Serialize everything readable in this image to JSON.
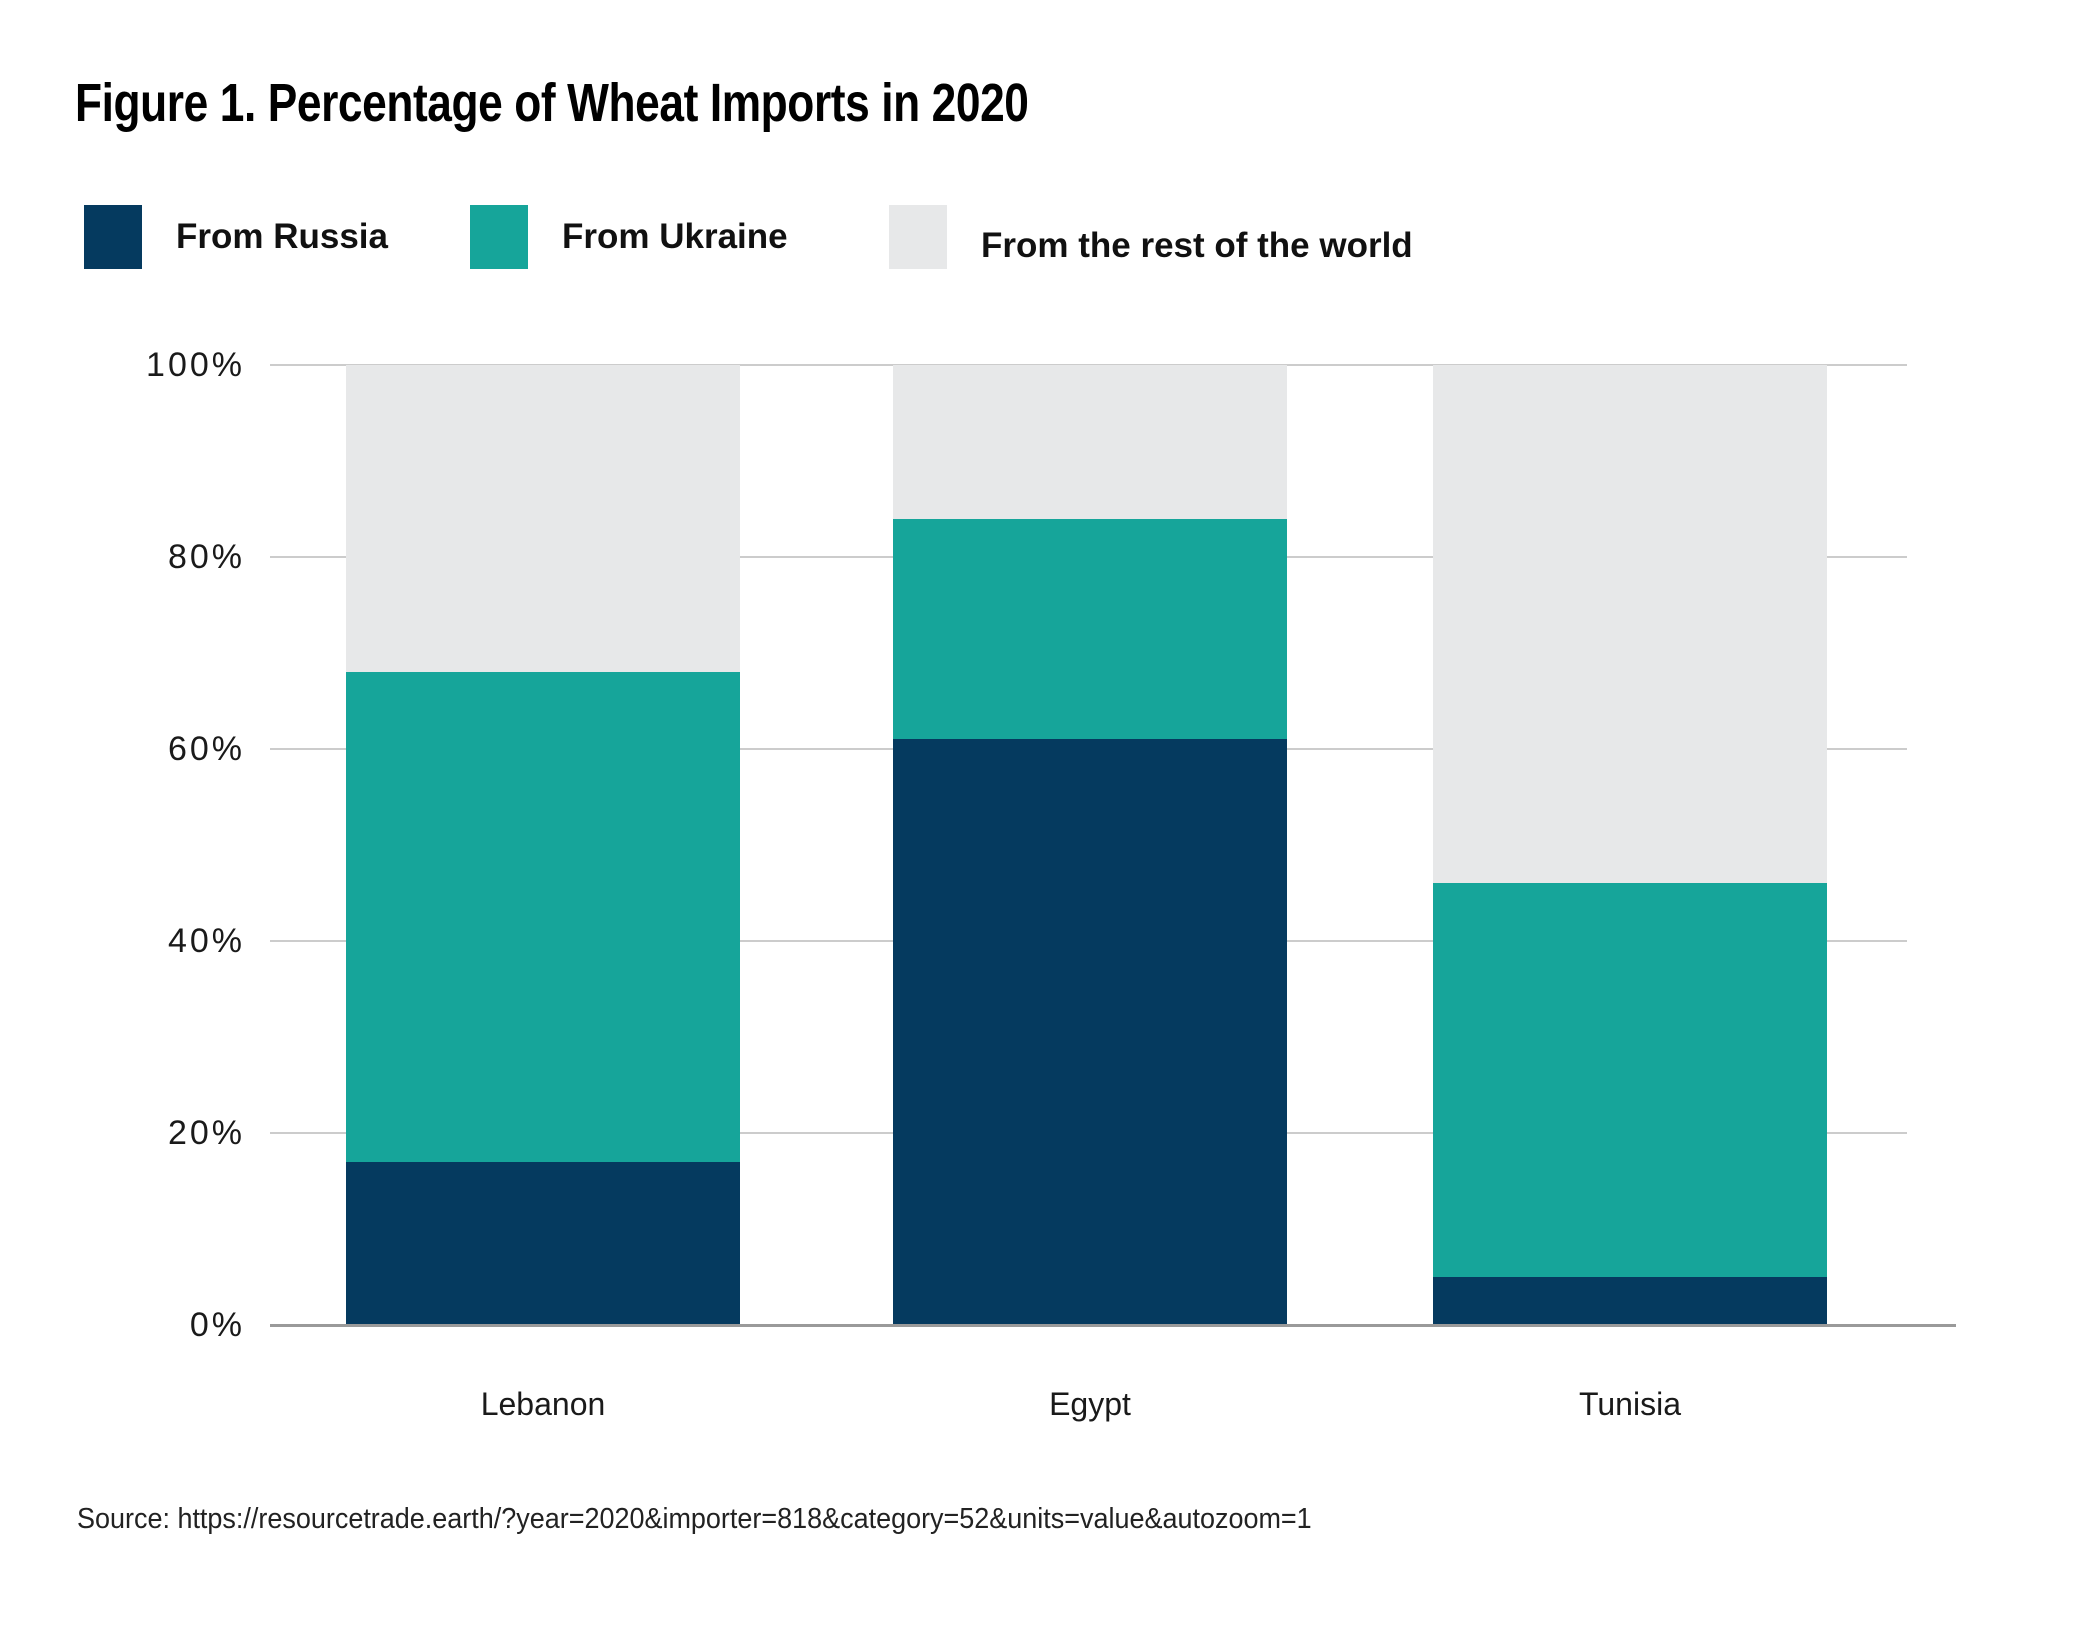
{
  "figure": {
    "title": "Figure 1. Percentage of Wheat Imports in 2020",
    "source_line": "Source: https://resourcetrade.earth/?year=2020&importer=818&category=52&units=value&autozoom=1"
  },
  "legend": {
    "position": "top",
    "items": [
      {
        "label": "From Russia",
        "color": "#053a5f"
      },
      {
        "label": "From Ukraine",
        "color": "#16a59a"
      },
      {
        "label": "From the rest of the world",
        "color": "#e7e8e9"
      }
    ]
  },
  "chart_data": {
    "type": "bar",
    "stacked": true,
    "unit": "percent",
    "title": "Figure 1. Percentage of Wheat Imports in 2020",
    "categories": [
      "Lebanon",
      "Egypt",
      "Tunisia"
    ],
    "series": [
      {
        "name": "From Russia",
        "color": "#053a5f",
        "values": [
          17,
          61,
          5
        ]
      },
      {
        "name": "From Ukraine",
        "color": "#16a59a",
        "values": [
          51,
          23,
          41
        ]
      },
      {
        "name": "From the rest of the world",
        "color": "#e7e8e9",
        "values": [
          32,
          16,
          54
        ]
      }
    ],
    "y_axis": {
      "min": 0,
      "max": 100,
      "step": 20,
      "tick_labels": [
        "0%",
        "20%",
        "40%",
        "60%",
        "80%",
        "100%"
      ],
      "grid": true
    },
    "x_axis": {
      "tick_labels": [
        "Lebanon",
        "Egypt",
        "Tunisia"
      ]
    },
    "legend_position": "top"
  },
  "colors": {
    "background": "#ffffff",
    "russia": "#053a5f",
    "ukraine": "#16a59a",
    "rest_of_world": "#e7e8e9",
    "gridline": "#cccccc",
    "axis_line": "#9a9a9a",
    "text": "#1a1a1a"
  }
}
